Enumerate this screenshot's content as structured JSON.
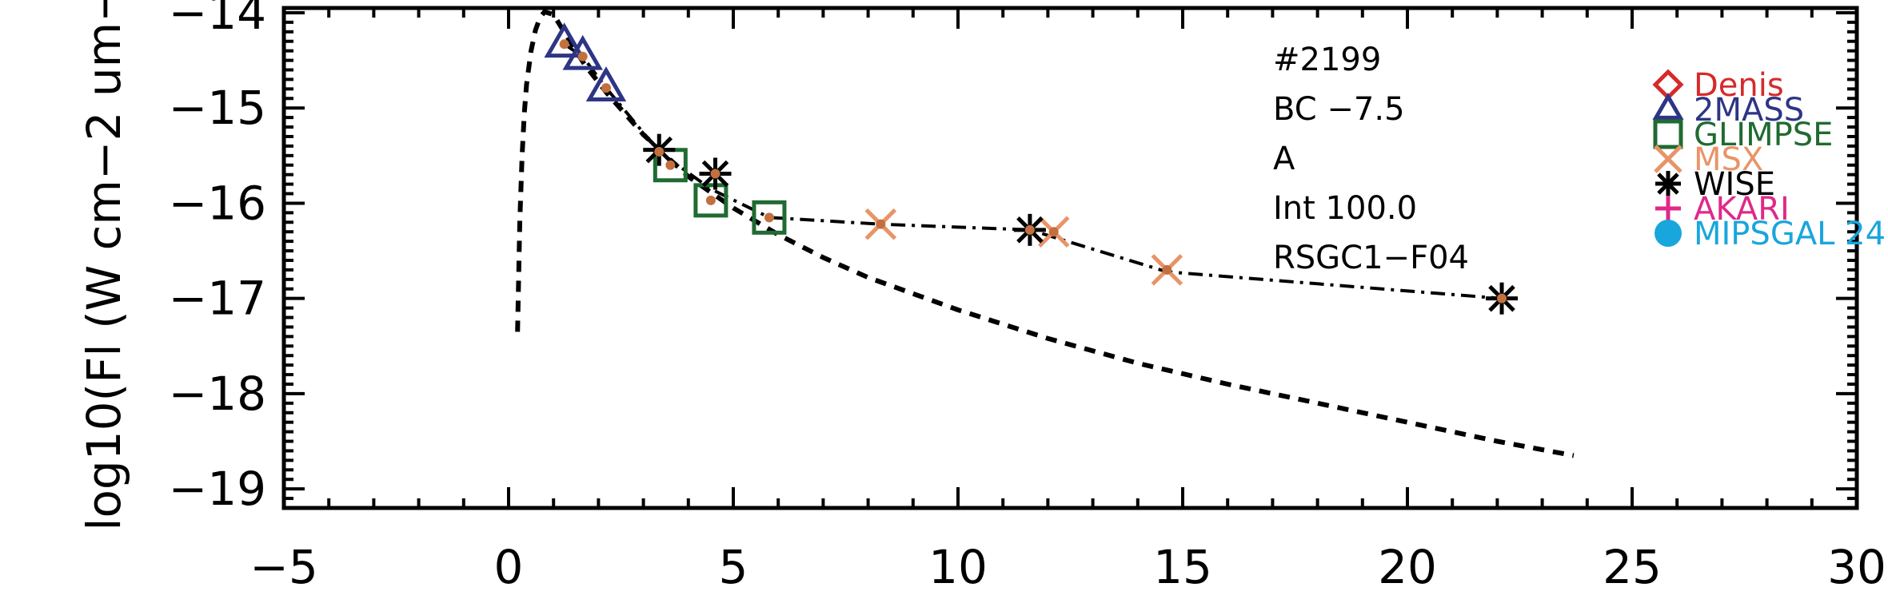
{
  "chart_data": {
    "type": "scatter",
    "ylabel": "log10(Fl (W cm−2 um−",
    "xlim": [
      -5,
      30
    ],
    "ylim": [
      -19.2,
      -13.95
    ],
    "x_ticks": [
      -5,
      0,
      5,
      10,
      15,
      20,
      25,
      30
    ],
    "x_tick_labels": [
      "−5",
      "0",
      "5",
      "10",
      "15",
      "20",
      "25",
      "30"
    ],
    "y_ticks": [
      -19,
      -18,
      -17,
      -16,
      -15,
      -14
    ],
    "y_tick_labels": [
      "−19",
      "−18",
      "−17",
      "−16",
      "−15",
      "−14"
    ],
    "annotations": [
      "#2199",
      "BC −7.5",
      "A",
      "Int 100.0",
      "RSGC1−F04"
    ],
    "legend_position": "right",
    "legend": [
      {
        "name": "Denis",
        "marker": "diamond",
        "color": "#d62a2a"
      },
      {
        "name": "2MASS",
        "marker": "triangle",
        "color": "#2e3585"
      },
      {
        "name": "GLIMPSE",
        "marker": "square",
        "color": "#1f6b32"
      },
      {
        "name": "MSX",
        "marker": "x",
        "color": "#e89468"
      },
      {
        "name": "WISE",
        "marker": "asterisk",
        "color": "#000000"
      },
      {
        "name": "AKARI",
        "marker": "plus",
        "color": "#e0288a"
      },
      {
        "name": "MIPSGAL 24",
        "marker": "circle",
        "color": "#19a6dc"
      }
    ],
    "series": [
      {
        "name": "2MASS",
        "marker": "triangle",
        "color": "#2e3585",
        "x": [
          1.24,
          1.65,
          2.17
        ],
        "y": [
          -14.33,
          -14.46,
          -14.79
        ]
      },
      {
        "name": "GLIMPSE",
        "marker": "square",
        "color": "#1f6b32",
        "x": [
          3.6,
          4.5,
          5.8
        ],
        "y": [
          -15.6,
          -15.97,
          -16.15
        ]
      },
      {
        "name": "MSX",
        "marker": "x",
        "color": "#e89468",
        "x": [
          8.28,
          12.13,
          14.65
        ],
        "y": [
          -16.22,
          -16.3,
          -16.7
        ]
      },
      {
        "name": "WISE",
        "marker": "asterisk",
        "color": "#000000",
        "x": [
          3.35,
          4.6,
          11.6,
          22.1
        ],
        "y": [
          -15.44,
          -15.69,
          -16.28,
          -17.0
        ]
      }
    ],
    "model_points": {
      "color": "#c2703f",
      "x": [
        1.24,
        1.65,
        2.17,
        3.35,
        3.6,
        4.5,
        4.6,
        5.8,
        8.28,
        11.6,
        12.13,
        14.65,
        22.1
      ],
      "y": [
        -14.33,
        -14.46,
        -14.79,
        -15.46,
        -15.6,
        -15.97,
        -15.69,
        -16.15,
        -16.22,
        -16.28,
        -16.3,
        -16.7,
        -17.0
      ]
    },
    "fit_curve": {
      "style": "dash-dot",
      "color": "#000000",
      "x": [
        1.24,
        1.65,
        2.17,
        3.35,
        4.5,
        5.8,
        8.28,
        11.6,
        14.65,
        22.1
      ],
      "y": [
        -14.33,
        -14.46,
        -14.79,
        -15.46,
        -15.85,
        -16.15,
        -16.22,
        -16.28,
        -16.72,
        -17.0
      ]
    },
    "blackbody_curve": {
      "style": "dashed",
      "color": "#000000",
      "x": [
        0.2,
        0.25,
        0.3,
        0.35,
        0.4,
        0.5,
        0.6,
        0.7,
        0.8,
        1.0,
        1.3,
        1.7,
        2.2,
        3,
        4,
        5,
        6,
        7,
        8,
        10,
        12,
        14,
        16,
        18,
        20,
        22,
        23.7
      ],
      "y": [
        -17.35,
        -16.2,
        -15.5,
        -15.05,
        -14.75,
        -14.4,
        -14.18,
        -14.05,
        -13.99,
        -14.02,
        -14.25,
        -14.55,
        -14.85,
        -15.28,
        -15.72,
        -16.05,
        -16.33,
        -16.57,
        -16.78,
        -17.12,
        -17.42,
        -17.68,
        -17.9,
        -18.1,
        -18.3,
        -18.5,
        -18.65
      ]
    }
  }
}
